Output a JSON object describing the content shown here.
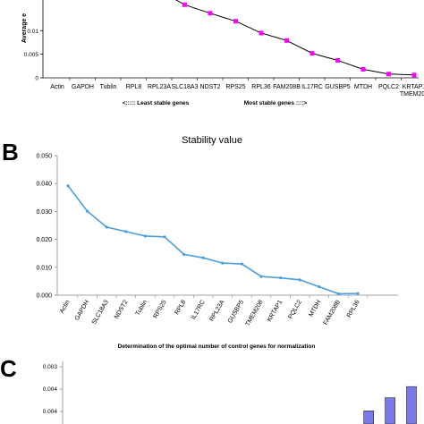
{
  "chart_data": [
    {
      "type": "line",
      "panel": "",
      "title": "",
      "ylabel": "Average e",
      "xlabel": "",
      "categories": [
        "Actin",
        "GAPDH",
        "Tublin",
        "RPL8",
        "RPL23A",
        "SLC18A3",
        "NDST2",
        "RPS25",
        "RPL36",
        "FAM208B",
        "IL17RC",
        "GUSBP5",
        "MTDH",
        "PQLC2",
        "KRTAP1 TMEM208"
      ],
      "values": [
        null,
        null,
        null,
        null,
        null,
        0.0155,
        0.0137,
        0.012,
        0.0095,
        0.0079,
        0.0052,
        0.0037,
        0.0018,
        0.0008,
        0.0006
      ],
      "yticks": [
        "0",
        "0.005",
        "0.01"
      ],
      "ylim": [
        0,
        0.0165
      ],
      "arrow_left": "<::::: Least stable genes",
      "arrow_right": "Most stable genes ::::>",
      "line_color": "#000000",
      "marker_color": "#ff00ff",
      "grid": false
    },
    {
      "type": "line",
      "panel": "B",
      "title": "Stability value",
      "xlabel": "",
      "ylabel": "",
      "categories": [
        "Actin",
        "GAPDH",
        "SLC18A3",
        "NDST2",
        "Tublin",
        "RPS25",
        "RPL8",
        "IL17RC",
        "RPL23A",
        "GUSBP5",
        "TMEM208",
        "KRTAP1",
        "PQLC2",
        "MTDH",
        "FAM208B",
        "RPL36"
      ],
      "values": [
        0.0392,
        0.0301,
        0.0244,
        0.0228,
        0.0212,
        0.0209,
        0.0146,
        0.0134,
        0.0115,
        0.0112,
        0.0067,
        0.0062,
        0.0055,
        0.003,
        0.0005,
        0.0006
      ],
      "yticks": [
        "0.000",
        "0.010",
        "0.020",
        "0.030",
        "0.040",
        "0.050"
      ],
      "ylim": [
        0,
        0.05
      ],
      "line_color": "#4a9ee0",
      "grid": false
    },
    {
      "type": "bar",
      "panel": "C",
      "title": "Determination of the optimal number of control genes for normalization",
      "xlabel": "",
      "ylabel": "",
      "yticks": [
        "0.003",
        "0.004",
        "0.004"
      ],
      "values": [
        null,
        null,
        null,
        null,
        null,
        null,
        null,
        null,
        null,
        null,
        null,
        null,
        null,
        0.00305,
        0.00325,
        0.00342
      ],
      "bar_color": "#7a7ae8",
      "grid": false
    }
  ]
}
